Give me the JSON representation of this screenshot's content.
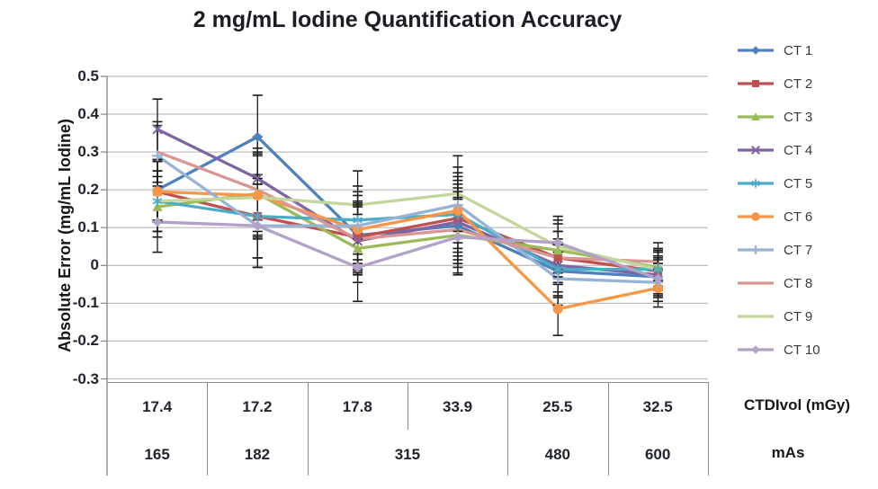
{
  "title": "2 mg/mL Iodine Quantification Accuracy",
  "y_axis": {
    "label": "Absolute Error (mg/mL Iodine)",
    "ticks": [
      0.5,
      0.4,
      0.3,
      0.2,
      0.1,
      0,
      -0.1,
      -0.2,
      -0.3
    ]
  },
  "x_table": {
    "row1_label": "CTDIvol (mGy)",
    "row2_label": "mAs",
    "ctdivol": [
      "17.4",
      "17.2",
      "17.8",
      "33.9",
      "25.5",
      "32.5"
    ],
    "mas": [
      {
        "label": "165",
        "span": 1
      },
      {
        "label": "182",
        "span": 1
      },
      {
        "label": "315",
        "span": 2
      },
      {
        "label": "480",
        "span": 1
      },
      {
        "label": "600",
        "span": 1
      }
    ]
  },
  "colors": {
    "gridline": "#bfbfbf",
    "axis": "#8c8c8c",
    "error_bar": "#1a1a1a",
    "text": "#20242c"
  },
  "chart_data": {
    "type": "line",
    "title": "2 mg/mL Iodine Quantification Accuracy",
    "xlabel": "CTDIvol (mGy) / mAs",
    "ylabel": "Absolute Error (mg/mL Iodine)",
    "ylim": [
      -0.3,
      0.5
    ],
    "grid": true,
    "legend_position": "right",
    "categories_ctdivol": [
      17.4,
      17.2,
      17.8,
      33.9,
      25.5,
      32.5
    ],
    "categories_mas": [
      165,
      182,
      315,
      315,
      480,
      600
    ],
    "error_halfwidth_per_category": [
      0.08,
      0.11,
      0.09,
      0.1,
      0.07,
      0.05
    ],
    "series": [
      {
        "name": "CT 1",
        "color": "#4F81BD",
        "marker": "diamond",
        "values": [
          0.2,
          0.34,
          0.08,
          0.105,
          -0.015,
          -0.03
        ]
      },
      {
        "name": "CT 2",
        "color": "#C0504D",
        "marker": "square",
        "values": [
          0.195,
          0.13,
          0.075,
          0.125,
          0.02,
          -0.015
        ]
      },
      {
        "name": "CT 3",
        "color": "#9BBB59",
        "marker": "triangle",
        "values": [
          0.155,
          0.19,
          0.045,
          0.08,
          0.04,
          -0.005
        ]
      },
      {
        "name": "CT 4",
        "color": "#8064A2",
        "marker": "x",
        "values": [
          0.36,
          0.23,
          0.065,
          0.115,
          0.0,
          -0.025
        ]
      },
      {
        "name": "CT 5",
        "color": "#4BACC6",
        "marker": "asterisk",
        "values": [
          0.17,
          0.13,
          0.12,
          0.135,
          -0.01,
          -0.01
        ]
      },
      {
        "name": "CT 6",
        "color": "#F79646",
        "marker": "circle",
        "values": [
          0.195,
          0.185,
          0.095,
          0.145,
          -0.115,
          -0.06
        ]
      },
      {
        "name": "CT 7",
        "color": "#95B3D7",
        "marker": "plus",
        "values": [
          0.29,
          0.105,
          0.105,
          0.16,
          -0.035,
          -0.045
        ]
      },
      {
        "name": "CT 8",
        "color": "#D99694",
        "marker": "none",
        "values": [
          0.3,
          0.2,
          0.07,
          0.095,
          0.02,
          0.01
        ]
      },
      {
        "name": "CT 9",
        "color": "#C3D69B",
        "marker": "none",
        "values": [
          0.17,
          0.18,
          0.16,
          0.19,
          0.05,
          -0.01
        ]
      },
      {
        "name": "CT 10",
        "color": "#B3A2C7",
        "marker": "diamond",
        "values": [
          0.115,
          0.105,
          -0.005,
          0.075,
          0.06,
          -0.035
        ]
      }
    ]
  }
}
